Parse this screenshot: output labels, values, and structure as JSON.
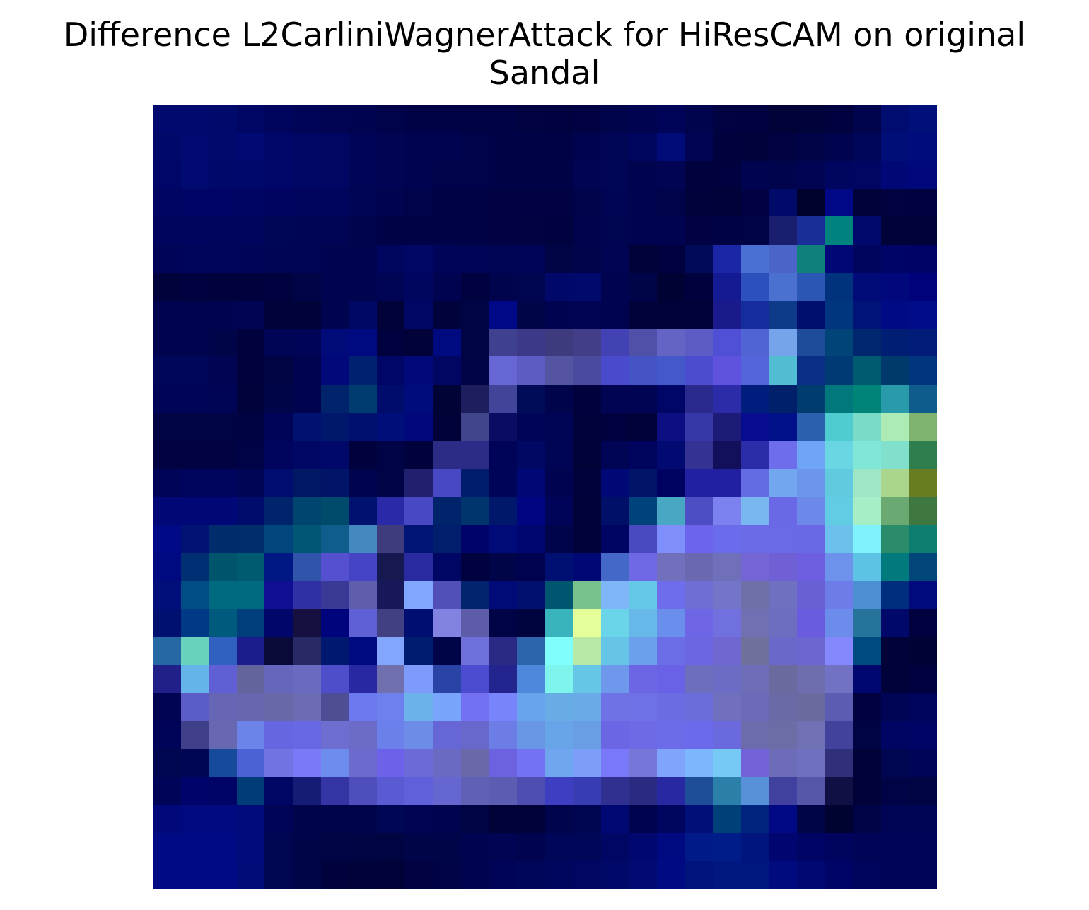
{
  "chart_data": {
    "type": "heatmap",
    "title": "Difference L2CarliniWagnerAttack for HiResCAM on original Sandal",
    "title_lines": [
      "Difference L2CarliniWagnerAttack for HiResCAM on original",
      "Sandal"
    ],
    "xlabel": "",
    "ylabel": "",
    "axes_visible": false,
    "grid": false,
    "legend": "none",
    "colorbar": false,
    "rows": 28,
    "cols": 28,
    "cells": [
      [
        "#000A6E",
        "#000A6E",
        "#000A6A",
        "#000664",
        "#00045C",
        "#000456",
        "#000452",
        "#000450",
        "#00024A",
        "#000248",
        "#000248",
        "#000246",
        "#000246",
        "#000242",
        "#000240",
        "#000244",
        "#00044A",
        "#000450",
        "#000458",
        "#00044C",
        "#000242",
        "#000240",
        "#000238",
        "#00023A",
        "#00023F",
        "#00044C",
        "#000C70",
        "#00107A"
      ],
      [
        "#00086A",
        "#000A70",
        "#000A6C",
        "#000A72",
        "#000668",
        "#000664",
        "#000662",
        "#000458",
        "#000452",
        "#000450",
        "#000450",
        "#00024A",
        "#000248",
        "#000248",
        "#000248",
        "#00044E",
        "#000556",
        "#000660",
        "#000A78",
        "#000452",
        "#00023E",
        "#00023B",
        "#000242",
        "#000348",
        "#00044E",
        "#000658",
        "#000E78",
        "#000C7C"
      ],
      [
        "#000668",
        "#000A70",
        "#00086A",
        "#00086C",
        "#000668",
        "#000664",
        "#000662",
        "#000456",
        "#000452",
        "#000450",
        "#00024A",
        "#00024A",
        "#000248",
        "#000248",
        "#000248",
        "#000452",
        "#000556",
        "#00044E",
        "#000452",
        "#00023E",
        "#000240",
        "#000450",
        "#00044C",
        "#000452",
        "#000560",
        "#000662",
        "#000878",
        "#00087C"
      ],
      [
        "#000462",
        "#000464",
        "#000464",
        "#000462",
        "#000460",
        "#00045E",
        "#00045C",
        "#000454",
        "#00044E",
        "#00024A",
        "#000246",
        "#000246",
        "#000244",
        "#000244",
        "#000244",
        "#00034A",
        "#000454",
        "#00044E",
        "#00034A",
        "#00023C",
        "#000238",
        "#000244",
        "#000A68",
        "#00022E",
        "#000886",
        "#00023A",
        "#000340",
        "#00023F"
      ],
      [
        "#00045C",
        "#00045E",
        "#00045C",
        "#00045C",
        "#000656",
        "#000454",
        "#000454",
        "#00044C",
        "#000248",
        "#000248",
        "#000248",
        "#000246",
        "#000244",
        "#000242",
        "#000240",
        "#00034C",
        "#000552",
        "#000450",
        "#000450",
        "#000244",
        "#000246",
        "#000446",
        "#1A1E6E",
        "#1A2E9A",
        "#00827E",
        "#000A6C",
        "#000338",
        "#00023A"
      ],
      [
        "#000458",
        "#00045A",
        "#00045A",
        "#000458",
        "#000454",
        "#000454",
        "#000450",
        "#00044E",
        "#000660",
        "#000664",
        "#000458",
        "#000456",
        "#000454",
        "#000456",
        "#000444",
        "#00034A",
        "#000452",
        "#000238",
        "#000240",
        "#000A58",
        "#1A26A6",
        "#4A70D4",
        "#4A64C8",
        "#10807A",
        "#000878",
        "#00045E",
        "#000466",
        "#000266"
      ],
      [
        "#00023C",
        "#000240",
        "#00023E",
        "#00023E",
        "#000240",
        "#000446",
        "#000450",
        "#00044E",
        "#000454",
        "#000660",
        "#000450",
        "#000240",
        "#00044C",
        "#00054F",
        "#00086A",
        "#000A6C",
        "#000450",
        "#000448",
        "#000234",
        "#00023E",
        "#141A92",
        "#2C50BC",
        "#4A70D0",
        "#2C56B4",
        "#00327E",
        "#000A78",
        "#00087C",
        "#00027C"
      ],
      [
        "#00044E",
        "#00044E",
        "#000450",
        "#000452",
        "#00023A",
        "#00023A",
        "#00044E",
        "#000866",
        "#000238",
        "#000664",
        "#00023C",
        "#000444",
        "#000888",
        "#000448",
        "#000450",
        "#000452",
        "#000450",
        "#00023A",
        "#000238",
        "#000238",
        "#1A1A8C",
        "#142C9C",
        "#0E3A8A",
        "#000E6E",
        "#003680",
        "#001478",
        "#000A84",
        "#000C88"
      ],
      [
        "#00044E",
        "#00044E",
        "#000448",
        "#00023E",
        "#000454",
        "#000456",
        "#000A78",
        "#000A80",
        "#000240",
        "#000238",
        "#000A80",
        "#000444",
        "#404090",
        "#3C3A88",
        "#3E3A7E",
        "#423E88",
        "#4242B4",
        "#5050A8",
        "#6464C4",
        "#5C5CC4",
        "#5050D6",
        "#5064D4",
        "#76A4EA",
        "#1E4C9A",
        "#004478",
        "#00266E",
        "#001E74",
        "#001C78"
      ],
      [
        "#00065A",
        "#00065A",
        "#000452",
        "#00023E",
        "#000442",
        "#000450",
        "#00087A",
        "#002070",
        "#000666",
        "#00087A",
        "#000662",
        "#000446",
        "#6666D4",
        "#5C5CC2",
        "#5454A0",
        "#4A4A9E",
        "#4A4ACC",
        "#4454C4",
        "#4458CA",
        "#4C4CCE",
        "#5E52DE",
        "#5464DA",
        "#52BCD2",
        "#0A2E86",
        "#003A74",
        "#005A70",
        "#003A6C",
        "#00347C"
      ],
      [
        "#000456",
        "#000456",
        "#000454",
        "#00023C",
        "#000448",
        "#00044E",
        "#00246C",
        "#003C70",
        "#000C6C",
        "#000C7C",
        "#000336",
        "#1C1E5E",
        "#42449A",
        "#000C58",
        "#00044A",
        "#00023E",
        "#000452",
        "#000452",
        "#000666",
        "#2A2A8C",
        "#2C2CA8",
        "#001C7C",
        "#00206A",
        "#003C70",
        "#00787C",
        "#008478",
        "#289AAA",
        "#0E5C8C"
      ],
      [
        "#000344",
        "#000344",
        "#000344",
        "#000342",
        "#000458",
        "#001270",
        "#00186C",
        "#00106E",
        "#000E7A",
        "#00087C",
        "#000238",
        "#40448A",
        "#0A0C64",
        "#000456",
        "#000454",
        "#00023C",
        "#000240",
        "#000238",
        "#0C0E82",
        "#3638A8",
        "#1C1C78",
        "#080C90",
        "#001088",
        "#2A60AE",
        "#4ECCD0",
        "#7ADCC8",
        "#ACECB4",
        "#7EB470"
      ],
      [
        "#000242",
        "#000242",
        "#000242",
        "#000346",
        "#00045E",
        "#000664",
        "#00086A",
        "#00023E",
        "#000346",
        "#00023E",
        "#2C2C86",
        "#2C2C88",
        "#000458",
        "#000864",
        "#000454",
        "#000238",
        "#000454",
        "#00045E",
        "#000A70",
        "#343292",
        "#12105A",
        "#2A2CA8",
        "#6E6EEC",
        "#70A4F4",
        "#6AD6E4",
        "#80E6D8",
        "#80E0CC",
        "#2E7E4E"
      ],
      [
        "#000458",
        "#00045C",
        "#00045C",
        "#000454",
        "#000C70",
        "#001864",
        "#001468",
        "#00044E",
        "#000346",
        "#20206E",
        "#4848C4",
        "#001C6C",
        "#000458",
        "#000876",
        "#000450",
        "#00023C",
        "#000878",
        "#00146A",
        "#000262",
        "#2020A0",
        "#2020A0",
        "#646CE4",
        "#72A6EE",
        "#6C96EA",
        "#62CADE",
        "#9EE6C6",
        "#AAD68C",
        "#687C22"
      ],
      [
        "#000876",
        "#000878",
        "#000878",
        "#000C6C",
        "#00246C",
        "#004470",
        "#004A6C",
        "#001270",
        "#2A2AA8",
        "#4848C4",
        "#00246C",
        "#00346C",
        "#00186C",
        "#000682",
        "#000458",
        "#000238",
        "#001068",
        "#00427C",
        "#48A8C4",
        "#4E4EC4",
        "#7B82F0",
        "#78B6F0",
        "#6A68E4",
        "#6C88E8",
        "#62CCE4",
        "#A6EEC6",
        "#6AAA72",
        "#3E7840"
      ],
      [
        "#000A86",
        "#001274",
        "#002C6C",
        "#002E6A",
        "#00467C",
        "#005674",
        "#105C8C",
        "#4488C0",
        "#3E3C7C",
        "#001476",
        "#001E6C",
        "#00046A",
        "#000A78",
        "#000670",
        "#00044A",
        "#00023A",
        "#000462",
        "#4A4AC0",
        "#7E8EFA",
        "#6C64EC",
        "#6A6CEC",
        "#6A6AE6",
        "#6A6AE6",
        "#6A68E4",
        "#6CC0EC",
        "#80F2FE",
        "#2A8C6A",
        "#0E7E70"
      ],
      [
        "#000A80",
        "#002E72",
        "#00546C",
        "#005A70",
        "#001884",
        "#3054AA",
        "#5450D0",
        "#4444C4",
        "#161850",
        "#2A2AA0",
        "#000664",
        "#000240",
        "#000448",
        "#000250",
        "#000F72",
        "#000876",
        "#4468C8",
        "#6E68E4",
        "#7070BC",
        "#6A68B0",
        "#7070BA",
        "#7466D4",
        "#7060D6",
        "#6E5EE0",
        "#6C92EC",
        "#5EC2E4",
        "#007A7C",
        "#004678"
      ],
      [
        "#000F7A",
        "#004C84",
        "#006A80",
        "#006A80",
        "#100E92",
        "#3030A4",
        "#3A3A96",
        "#5E5EAC",
        "#16185A",
        "#80A6FE",
        "#5050B8",
        "#00246E",
        "#000A78",
        "#00106C",
        "#00566E",
        "#78C28E",
        "#7EB6F8",
        "#66C8E8",
        "#6E6EEC",
        "#6E6ED4",
        "#7474C8",
        "#7070A8",
        "#7070C0",
        "#6A60D6",
        "#6C7CE8",
        "#4C8ED2",
        "#002E7E",
        "#000A7C"
      ],
      [
        "#001070",
        "#003A86",
        "#005A7E",
        "#003E7C",
        "#00066A",
        "#161040",
        "#00047C",
        "#6060D6",
        "#404082",
        "#000E72",
        "#8282E0",
        "#5C5CA8",
        "#000446",
        "#00043E",
        "#3AB4BC",
        "#E4FE9A",
        "#6AD4E8",
        "#66B8E8",
        "#6A8EEC",
        "#6E66E4",
        "#7070DE",
        "#7070B2",
        "#6E6EC0",
        "#6A5CDE",
        "#6C8CEC",
        "#26749C",
        "#00086A",
        "#000240"
      ],
      [
        "#2668A4",
        "#68D2BC",
        "#3060C0",
        "#1C1C8E",
        "#0A0A3A",
        "#282A66",
        "#001870",
        "#000A80",
        "#82A6FC",
        "#001C70",
        "#000448",
        "#7070DA",
        "#2A2A86",
        "#2C64AE",
        "#80FEFC",
        "#B8E8A6",
        "#66C4E6",
        "#6AA0EC",
        "#6C6EE8",
        "#6C66E0",
        "#7068D0",
        "#70709C",
        "#6A68C8",
        "#6C66D0",
        "#8488FC",
        "#004A82",
        "#00023A",
        "#000236"
      ],
      [
        "#202088",
        "#64B4EA",
        "#6060D4",
        "#64649C",
        "#6666BC",
        "#6A6AC0",
        "#4E4ECA",
        "#2828A2",
        "#7070AE",
        "#7E9AFA",
        "#2A44A6",
        "#4C4CD0",
        "#24248E",
        "#4E88DC",
        "#7EF4EC",
        "#66C6E6",
        "#6E98EC",
        "#6C66E4",
        "#6A62E6",
        "#6E6EBE",
        "#6C6CC4",
        "#6E6EB8",
        "#6A6A9E",
        "#6E6EAE",
        "#7272C4",
        "#000870",
        "#00023A",
        "#000240"
      ],
      [
        "#000452",
        "#5C5CC6",
        "#6666B4",
        "#6666AE",
        "#6868A8",
        "#6C6CB4",
        "#4E4E94",
        "#6C78EE",
        "#6E80EE",
        "#6CB2EA",
        "#78A4FC",
        "#7470F2",
        "#7884FA",
        "#68A4EE",
        "#68ACE6",
        "#6AAAE6",
        "#6E72E4",
        "#6E70E6",
        "#6C6CE2",
        "#6C6CDA",
        "#7070BE",
        "#6A6AB8",
        "#6A6AA6",
        "#6A6A9E",
        "#5C5CB2",
        "#000240",
        "#000454",
        "#00045C"
      ],
      [
        "#000458",
        "#40408A",
        "#6868B2",
        "#6C84EA",
        "#6666E0",
        "#6868E4",
        "#6E6ED0",
        "#6C6CC8",
        "#6C80EC",
        "#6C8CE8",
        "#6666D6",
        "#6868CC",
        "#6C7EE6",
        "#6A96E6",
        "#68A4E8",
        "#6A9EE4",
        "#6A66E4",
        "#6E6AE6",
        "#6C6CE8",
        "#6A6AEA",
        "#6A6ADE",
        "#6C6CAC",
        "#6C6CA6",
        "#7070B4",
        "#42429C",
        "#000344",
        "#000462",
        "#000464"
      ],
      [
        "#000650",
        "#000654",
        "#164A9A",
        "#4C62D4",
        "#7272E2",
        "#7A7AF8",
        "#6C8CEE",
        "#6C6ACC",
        "#6C62EA",
        "#6C6AD6",
        "#6A6AC2",
        "#6A68A8",
        "#6C62E0",
        "#7272F2",
        "#70A6F0",
        "#7C9EF8",
        "#7878F8",
        "#7676D8",
        "#80A4FC",
        "#7CB6FE",
        "#74CAF4",
        "#7264D8",
        "#6C6CB8",
        "#7070C0",
        "#30307A",
        "#000238",
        "#000652",
        "#000458"
      ],
      [
        "#000458",
        "#00046A",
        "#000464",
        "#003C78",
        "#000664",
        "#141C76",
        "#3434A4",
        "#4E4EBC",
        "#5A5AD2",
        "#6060DA",
        "#6666D0",
        "#6060B4",
        "#5C5CB2",
        "#4E4EB0",
        "#3E3EC2",
        "#383CB2",
        "#303090",
        "#2A2A82",
        "#2828A2",
        "#1E4E9A",
        "#2A80A8",
        "#5690D8",
        "#40409E",
        "#5656A8",
        "#101045",
        "#000238",
        "#000446",
        "#000442"
      ],
      [
        "#00087A",
        "#000A7E",
        "#000A7E",
        "#000A7A",
        "#000456",
        "#00044A",
        "#00044A",
        "#00044A",
        "#000656",
        "#000452",
        "#00044E",
        "#000444",
        "#000238",
        "#000238",
        "#00044C",
        "#000552",
        "#000874",
        "#00044E",
        "#000660",
        "#001078",
        "#004078",
        "#00247E",
        "#000884",
        "#000448",
        "#000232",
        "#000346",
        "#000454",
        "#000454"
      ],
      [
        "#000A84",
        "#000A84",
        "#000A84",
        "#000A7A",
        "#000652",
        "#000448",
        "#000444",
        "#000442",
        "#000440",
        "#000448",
        "#000448",
        "#000450",
        "#000452",
        "#00044E",
        "#000658",
        "#000658",
        "#000664",
        "#000870",
        "#000A80",
        "#001A88",
        "#001C88",
        "#00167E",
        "#000570",
        "#000464",
        "#00045E",
        "#000456",
        "#000458",
        "#000458"
      ],
      [
        "#000A84",
        "#000A84",
        "#000A84",
        "#000A78",
        "#000652",
        "#000448",
        "#00023E",
        "#00023A",
        "#000238",
        "#000242",
        "#000446",
        "#00044E",
        "#000456",
        "#000658",
        "#00065E",
        "#000662",
        "#000868",
        "#000A70",
        "#000A82",
        "#00127C",
        "#001680",
        "#001680",
        "#000C7E",
        "#000872",
        "#000466",
        "#00045C",
        "#000458",
        "#000458"
      ]
    ]
  }
}
